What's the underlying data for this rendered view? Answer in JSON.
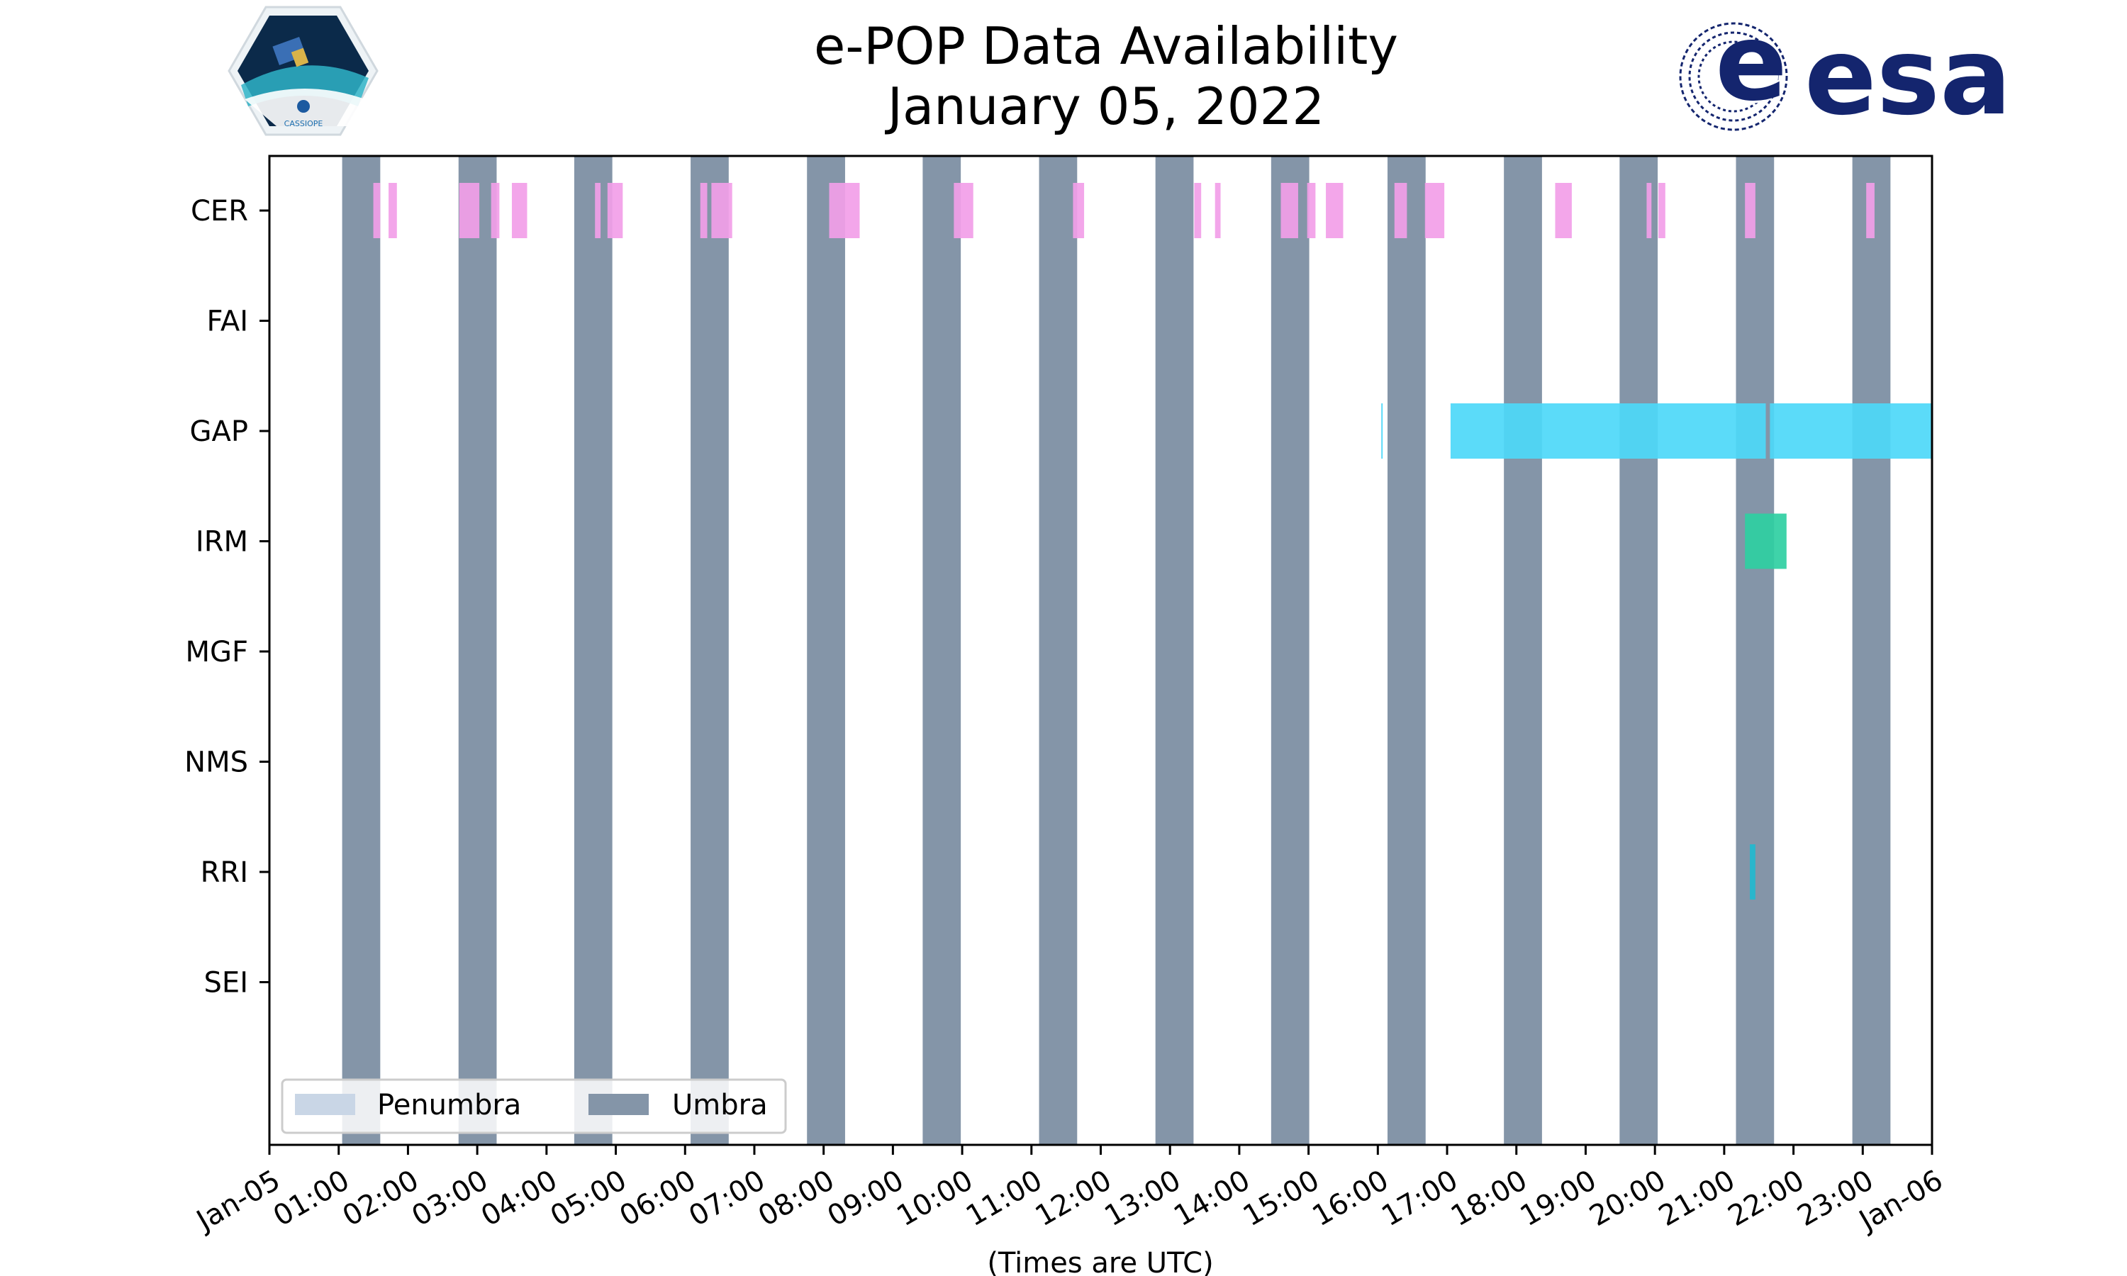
{
  "chart_data": {
    "type": "timeline",
    "title_line1": "e-POP Data Availability",
    "title_line2": "January 05, 2022",
    "xlabel": "(Times are UTC)",
    "x_range_hours": [
      0,
      24
    ],
    "x_tick_labels": [
      "Jan-05",
      "01:00",
      "02:00",
      "03:00",
      "04:00",
      "05:00",
      "06:00",
      "07:00",
      "08:00",
      "09:00",
      "10:00",
      "11:00",
      "12:00",
      "13:00",
      "14:00",
      "15:00",
      "16:00",
      "17:00",
      "18:00",
      "19:00",
      "20:00",
      "21:00",
      "22:00",
      "23:00",
      "Jan-06"
    ],
    "instruments": [
      "CER",
      "FAI",
      "GAP",
      "IRM",
      "MGF",
      "NMS",
      "RRI",
      "SEI"
    ],
    "umbra_intervals_hours": [
      [
        1.05,
        1.6
      ],
      [
        2.73,
        3.28
      ],
      [
        4.4,
        4.95
      ],
      [
        6.08,
        6.63
      ],
      [
        7.76,
        8.31
      ],
      [
        9.43,
        9.98
      ],
      [
        11.11,
        11.66
      ],
      [
        12.79,
        13.34
      ],
      [
        14.46,
        15.01
      ],
      [
        16.14,
        16.69
      ],
      [
        17.82,
        18.37
      ],
      [
        19.49,
        20.04
      ],
      [
        21.17,
        21.72
      ],
      [
        22.85,
        23.4
      ]
    ],
    "penumbra_intervals_hours": [],
    "data_bars": [
      {
        "instrument": "CER",
        "color": "#f29ee8",
        "intervals": [
          [
            1.5,
            1.6
          ],
          [
            1.72,
            1.84
          ],
          [
            2.74,
            3.03
          ],
          [
            3.2,
            3.32
          ],
          [
            3.5,
            3.72
          ],
          [
            4.7,
            4.78
          ],
          [
            4.88,
            5.1
          ],
          [
            6.22,
            6.32
          ],
          [
            6.38,
            6.68
          ],
          [
            8.08,
            8.52
          ],
          [
            9.88,
            10.16
          ],
          [
            11.6,
            11.76
          ],
          [
            13.35,
            13.45
          ],
          [
            13.65,
            13.73
          ],
          [
            14.6,
            14.85
          ],
          [
            14.98,
            15.1
          ],
          [
            15.25,
            15.5
          ],
          [
            16.24,
            16.42
          ],
          [
            16.68,
            16.96
          ],
          [
            18.56,
            18.8
          ],
          [
            19.88,
            19.95
          ],
          [
            20.05,
            20.15
          ],
          [
            21.3,
            21.45
          ],
          [
            23.05,
            23.17
          ]
        ]
      },
      {
        "instrument": "GAP",
        "color": "#4dd8f8",
        "intervals": [
          [
            16.05,
            16.07
          ],
          [
            17.05,
            21.6
          ],
          [
            21.66,
            24
          ]
        ]
      },
      {
        "instrument": "IRM",
        "color": "#2fcfa2",
        "intervals": [
          [
            21.3,
            21.9
          ]
        ]
      },
      {
        "instrument": "RRI",
        "color": "#22b8cf",
        "intervals": [
          [
            21.37,
            21.45
          ]
        ]
      }
    ],
    "legend": {
      "location": "lower-left",
      "entries": [
        {
          "label": "Penumbra",
          "color": "#c9d6e6"
        },
        {
          "label": "Umbra",
          "color": "#8495a8"
        }
      ]
    },
    "colors": {
      "umbra": "#8495a8",
      "penumbra": "#c9d6e6",
      "axis": "#000000"
    }
  },
  "logos": {
    "cassiope_text": "CASSIOPE",
    "esa_text": "esa",
    "esa_color": "#14256e"
  }
}
